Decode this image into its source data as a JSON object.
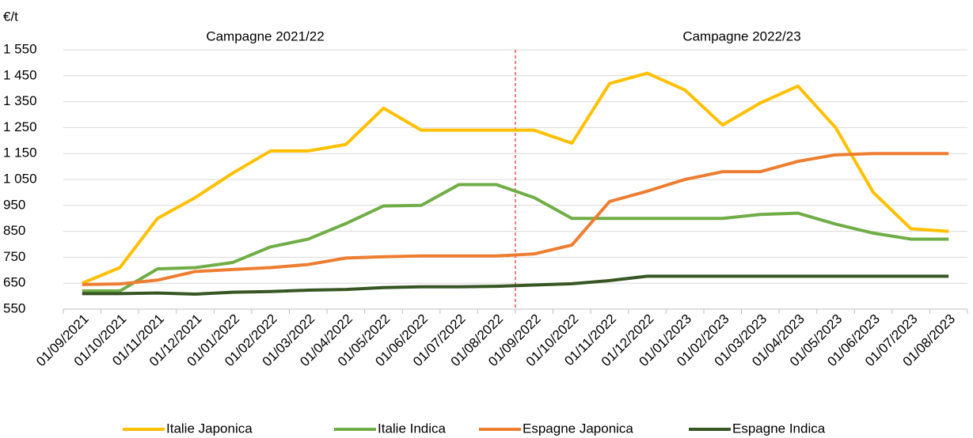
{
  "chart_data": {
    "type": "line",
    "y_unit_label": "€/t",
    "annotations": [
      "Campagne 2021/22",
      "Campagne 2022/23"
    ],
    "categories": [
      "01/09/2021",
      "01/10/2021",
      "01/11/2021",
      "01/12/2021",
      "01/01/2022",
      "01/02/2022",
      "01/03/2022",
      "01/04/2022",
      "01/05/2022",
      "01/06/2022",
      "01/07/2022",
      "01/08/2022",
      "01/09/2022",
      "01/10/2022",
      "01/11/2022",
      "01/12/2022",
      "01/01/2023",
      "01/02/2023",
      "01/03/2023",
      "01/04/2023",
      "01/05/2023",
      "01/06/2023",
      "01/07/2023",
      "01/08/2023"
    ],
    "series": [
      {
        "name": "Italie Japonica",
        "color": "#FFC000",
        "values": [
          650,
          710,
          900,
          980,
          1075,
          1160,
          1160,
          1185,
          1325,
          1240,
          1240,
          1240,
          1240,
          1190,
          1420,
          1460,
          1395,
          1260,
          1345,
          1410,
          1250,
          1000,
          860,
          850
        ]
      },
      {
        "name": "Italie Indica",
        "color": "#70AD47",
        "values": [
          620,
          620,
          705,
          710,
          730,
          790,
          820,
          880,
          948,
          950,
          1030,
          1030,
          980,
          900,
          900,
          900,
          900,
          900,
          915,
          920,
          878,
          843,
          820,
          820
        ]
      },
      {
        "name": "Espagne Japonica",
        "color": "#ED7D31",
        "values": [
          645,
          647,
          662,
          695,
          703,
          710,
          722,
          747,
          752,
          755,
          755,
          755,
          763,
          797,
          965,
          1005,
          1050,
          1080,
          1080,
          1120,
          1145,
          1150,
          1150,
          1150
        ]
      },
      {
        "name": "Espagne Indica",
        "color": "#375623",
        "values": [
          610,
          610,
          612,
          608,
          615,
          618,
          623,
          626,
          633,
          636,
          636,
          638,
          643,
          648,
          660,
          677,
          677,
          677,
          677,
          677,
          677,
          677,
          677,
          677
        ]
      }
    ],
    "ylim": [
      550,
      1550
    ],
    "yticks": [
      550,
      650,
      750,
      850,
      950,
      {
        "value": 1050,
        "label": "1 050"
      },
      {
        "value": 1150,
        "label": "1 150"
      },
      {
        "value": 1250,
        "label": "1 250"
      },
      {
        "value": 1350,
        "label": "1 350"
      },
      {
        "value": 1450,
        "label": "1 450"
      },
      {
        "value": 1550,
        "label": "1 550"
      }
    ],
    "grid": true
  }
}
